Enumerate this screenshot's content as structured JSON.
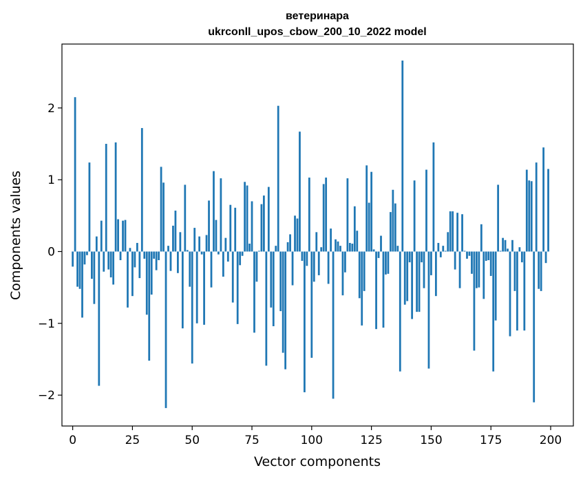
{
  "chart_data": {
    "type": "bar",
    "title": "ветеринара",
    "subtitle": "ukrconll_upos_cbow_200_10_2022 model",
    "xlabel": "Vector components",
    "ylabel": "Components values",
    "xlim": [
      -4.5,
      209.5
    ],
    "ylim": [
      -2.43,
      2.89
    ],
    "xticks": [
      0,
      25,
      50,
      75,
      100,
      125,
      150,
      175,
      200
    ],
    "xtick_labels": [
      "0",
      "25",
      "50",
      "75",
      "100",
      "125",
      "150",
      "175",
      "200"
    ],
    "yticks": [
      -2,
      -1,
      0,
      1,
      2
    ],
    "ytick_labels": [
      "−2",
      "−1",
      "0",
      "1",
      "2"
    ],
    "grid": false,
    "color": "#1f77b4",
    "x_start": 0,
    "values": [
      -0.21,
      2.15,
      -0.49,
      -0.52,
      -0.92,
      -0.18,
      -0.05,
      1.24,
      -0.38,
      -0.73,
      0.21,
      -1.87,
      0.43,
      -0.28,
      1.5,
      -0.25,
      -0.36,
      -0.46,
      1.52,
      0.45,
      -0.12,
      0.43,
      0.44,
      -0.78,
      0.05,
      -0.62,
      -0.22,
      0.12,
      -0.37,
      1.72,
      -0.1,
      -0.88,
      -1.52,
      -0.6,
      -0.1,
      -0.26,
      -0.12,
      1.18,
      0.96,
      -2.18,
      0.08,
      -0.27,
      0.36,
      0.57,
      -0.3,
      0.27,
      -1.07,
      0.93,
      0.02,
      -0.49,
      -1.56,
      0.33,
      -1.0,
      0.21,
      -0.04,
      -1.02,
      0.23,
      0.71,
      -0.5,
      1.12,
      0.44,
      -0.04,
      1.02,
      -0.35,
      0.19,
      -0.14,
      0.65,
      -0.71,
      0.61,
      -1.01,
      -0.19,
      -0.06,
      0.97,
      0.92,
      0.11,
      0.7,
      -1.13,
      -0.42,
      0.01,
      0.66,
      0.78,
      -1.59,
      0.9,
      -0.78,
      -1.04,
      0.08,
      2.03,
      -0.83,
      -1.41,
      -1.64,
      0.13,
      0.24,
      -0.47,
      0.5,
      0.46,
      1.67,
      -0.13,
      -1.96,
      -0.2,
      1.03,
      -1.48,
      -0.42,
      0.27,
      -0.33,
      0.06,
      0.94,
      1.03,
      -0.45,
      0.32,
      -2.05,
      0.17,
      0.14,
      0.08,
      -0.61,
      -0.29,
      1.02,
      0.12,
      0.11,
      0.63,
      0.29,
      -0.65,
      -1.03,
      -0.55,
      1.2,
      0.68,
      1.11,
      0.03,
      -1.08,
      -0.09,
      0.22,
      -1.06,
      -0.32,
      -0.31,
      0.55,
      0.86,
      0.67,
      0.08,
      -1.67,
      2.66,
      -0.74,
      -0.69,
      -0.15,
      -0.94,
      0.99,
      -0.84,
      -0.84,
      -0.15,
      -0.51,
      1.14,
      -1.63,
      -0.33,
      1.52,
      -0.62,
      0.12,
      -0.08,
      0.08,
      0.01,
      0.27,
      0.56,
      0.56,
      -0.25,
      0.54,
      -0.51,
      0.52,
      0.01,
      -0.1,
      -0.06,
      -0.31,
      -1.38,
      -0.51,
      -0.5,
      0.38,
      -0.66,
      -0.13,
      -0.12,
      -0.34,
      -1.67,
      -0.96,
      0.93,
      0.01,
      0.19,
      0.16,
      0.04,
      -1.18,
      0.16,
      -0.55,
      -1.1,
      0.06,
      -0.15,
      -1.1,
      1.14,
      0.99,
      0.98,
      -2.1,
      1.24,
      -0.52,
      -0.55,
      1.45,
      -0.16,
      1.15
    ]
  }
}
